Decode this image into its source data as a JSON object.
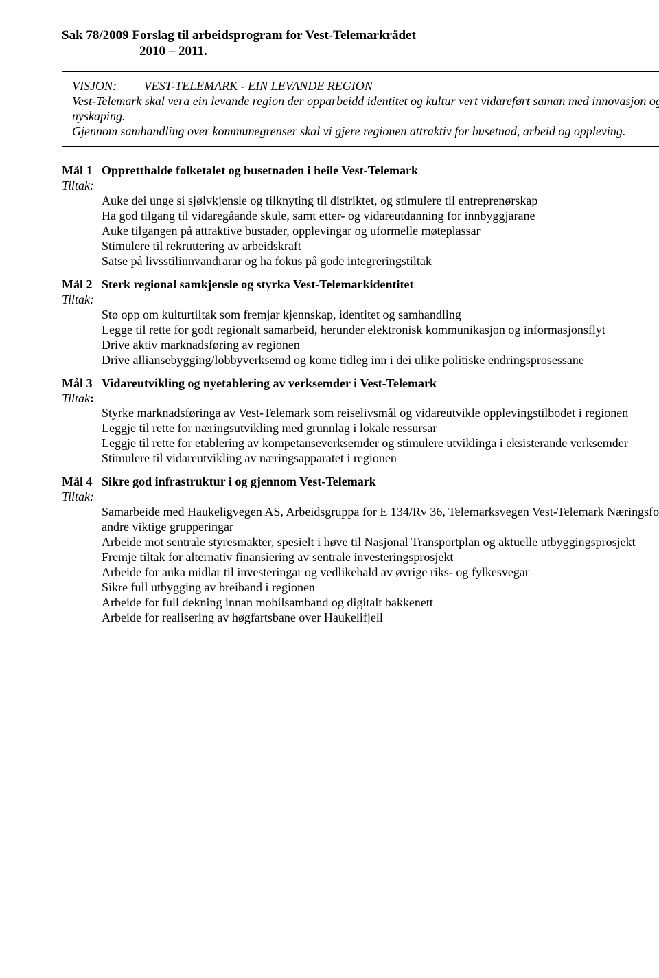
{
  "title": {
    "line1": "Sak 78/2009  Forslag til arbeidsprogram for Vest-Telemarkrådet",
    "line2": "2010 – 2011."
  },
  "vision": {
    "label": "VISJON:",
    "heading": "VEST-TELEMARK - EIN LEVANDE REGION",
    "para1": "Vest-Telemark skal vera ein levande region der opparbeidd identitet og kultur vert vidareført saman med innovasjon og nyskaping.",
    "para2": "Gjennom samhandling over kommunegrenser skal vi gjere regionen attraktiv for busetnad, arbeid og oppleving."
  },
  "tiltak_label": "Tiltak:",
  "tiltak_label_colon_bold": "Tiltak",
  "goals": [
    {
      "label": "Mål 1",
      "heading": "Oppretthalde folketalet og busetnaden i heile Vest-Telemark",
      "tiltak_variant": "italic",
      "items": [
        "Auke dei unge si sjølvkjensle og tilknyting til distriktet, og stimulere til entreprenørskap",
        "Ha god tilgang til vidaregåande skule, samt etter- og vidareutdanning for innbyggjarane",
        "Auke tilgangen på attraktive bustader, opplevingar og uformelle møteplassar",
        "Stimulere til rekruttering av arbeidskraft",
        "Satse på livsstilinnvandrarar og ha fokus på gode integreringstiltak"
      ]
    },
    {
      "label": "Mål 2",
      "heading": "Sterk regional samkjensle og styrka Vest-Telemarkidentitet",
      "tiltak_variant": "italic",
      "items": [
        "Stø opp om kulturtiltak som fremjar kjennskap, identitet og samhandling",
        "Legge til rette for godt regionalt samarbeid, herunder elektronisk kommunikasjon og informasjonsflyt",
        "Drive aktiv marknadsføring av regionen",
        "Drive alliansebygging/lobbyverksemd og kome tidleg inn i dei ulike politiske endringsprosessane"
      ]
    },
    {
      "label": "Mål 3",
      "heading": "Vidareutvikling og nyetablering av verksemder i Vest-Telemark",
      "tiltak_variant": "bold",
      "items": [
        "Styrke marknadsføringa av Vest-Telemark som reiselivsmål og vidareutvikle opplevingstilbodet i regionen",
        "Leggje til rette for næringsutvikling med grunnlag i lokale ressursar",
        "Leggje til rette for etablering av kompetanseverksemder og stimulere utviklinga i eksisterande verksemder",
        "Stimulere til vidareutvikling av næringsapparatet i regionen"
      ]
    },
    {
      "label": "Mål 4",
      "heading": "Sikre god infrastruktur i og gjennom Vest-Telemark",
      "tiltak_variant": "italic",
      "items": [
        "Samarbeide med Haukeligvegen AS, Arbeidsgruppa for E 134/Rv 36, Telemarksvegen Vest-Telemark Næringsforum og andre viktige grupperingar",
        "Arbeide mot sentrale styresmakter, spesielt i høve til Nasjonal Transportplan og aktuelle utbyggingsprosjekt",
        "Fremje tiltak for alternativ finansiering av sentrale investeringsprosjekt",
        "Arbeide for auka midlar til investeringar og vedlikehald av øvrige riks- og fylkesvegar",
        "Sikre full utbygging av breiband i regionen",
        "Arbeide for full dekning innan mobilsamband og digitalt bakkenett",
        "Arbeide for realisering av høgfartsbane over Haukelifjell"
      ]
    }
  ]
}
